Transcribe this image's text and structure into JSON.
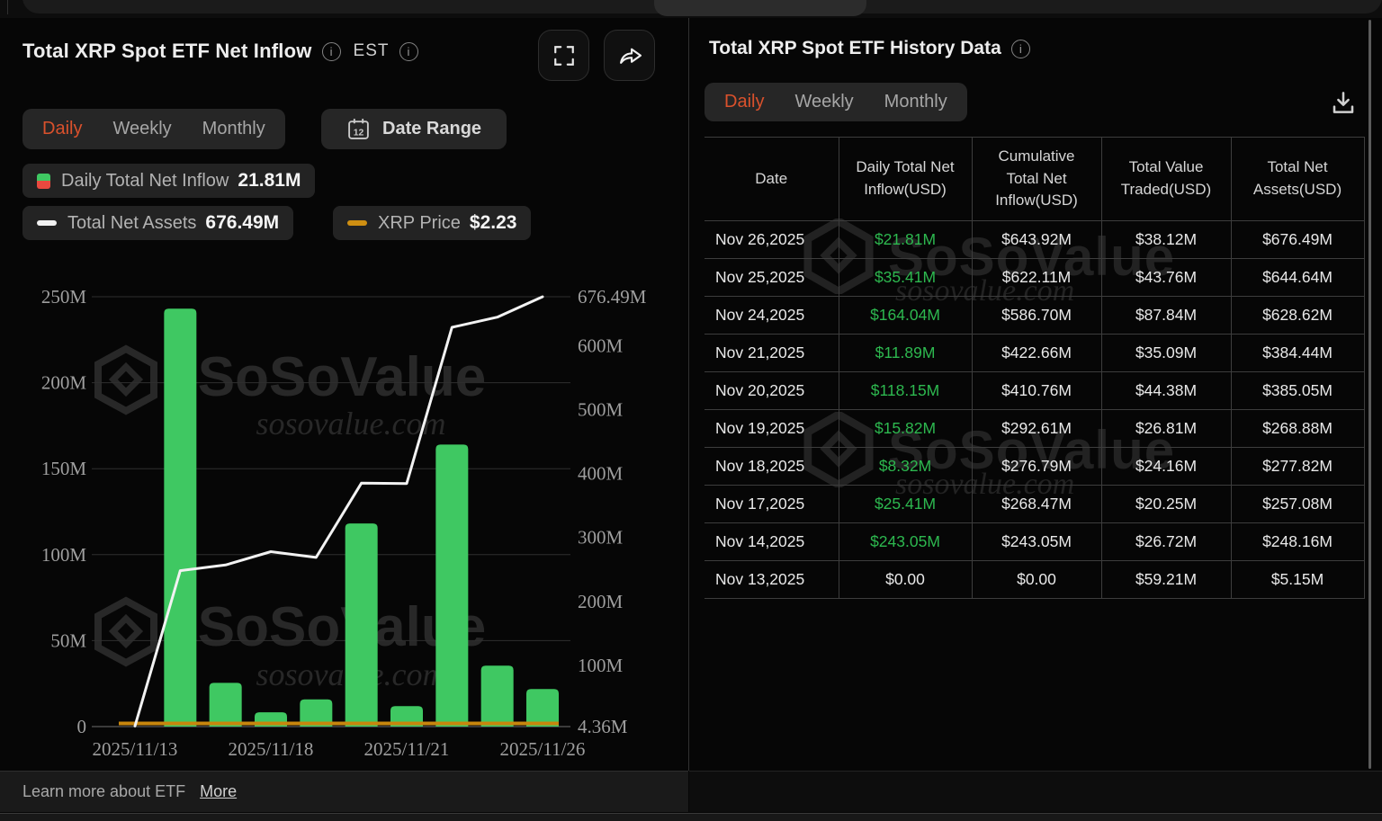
{
  "left_panel": {
    "title": "Total XRP Spot ETF Net Inflow",
    "timezone_label": "EST",
    "range_tabs": [
      "Daily",
      "Weekly",
      "Monthly"
    ],
    "active_tab": "Daily",
    "date_range_label": "Date Range",
    "calendar_day": "12",
    "legend": [
      {
        "label": "Daily Total Net Inflow",
        "value": "21.81M"
      },
      {
        "label": "Total Net Assets",
        "value": "676.49M"
      },
      {
        "label": "XRP Price",
        "value": "$2.23"
      }
    ]
  },
  "chart_data": {
    "type": "bar+line",
    "title": "Total XRP Spot ETF Net Inflow",
    "x": [
      "2025/11/13",
      "2025/11/14",
      "2025/11/17",
      "2025/11/18",
      "2025/11/19",
      "2025/11/20",
      "2025/11/21",
      "2025/11/24",
      "2025/11/25",
      "2025/11/26"
    ],
    "x_label_indices": [
      0,
      3,
      6,
      9
    ],
    "x_labels_shown": [
      "2025/11/13",
      "2025/11/18",
      "2025/11/21",
      "2025/11/26"
    ],
    "series": [
      {
        "name": "Daily Total Net Inflow",
        "type": "bar",
        "axis": "left",
        "unit": "USD millions",
        "color": "#3fc862",
        "values": [
          0,
          243.05,
          25.41,
          8.32,
          15.82,
          118.15,
          11.89,
          164.04,
          35.41,
          21.81
        ]
      },
      {
        "name": "Total Net Assets",
        "type": "line",
        "axis": "right",
        "unit": "USD millions",
        "color": "#f2f2f2",
        "values": [
          5.15,
          248.16,
          257.08,
          277.82,
          268.88,
          385.05,
          384.44,
          628.62,
          644.64,
          676.49
        ]
      },
      {
        "name": "XRP Price",
        "type": "line",
        "axis": "hidden",
        "unit": "USD",
        "color": "#c8860d",
        "current_value": "$2.23",
        "render": "flat_bottom",
        "values": null
      }
    ],
    "left_axis": {
      "labels": [
        "0",
        "50M",
        "100M",
        "150M",
        "200M",
        "250M"
      ],
      "values": [
        0,
        50,
        100,
        150,
        200,
        250
      ],
      "range": [
        0,
        250
      ]
    },
    "right_axis": {
      "labels": [
        "4.36M",
        "100M",
        "200M",
        "300M",
        "400M",
        "500M",
        "600M",
        "676.49M"
      ],
      "values": [
        4.36,
        100,
        200,
        300,
        400,
        500,
        600,
        676.49
      ],
      "range": [
        4.36,
        676.49
      ]
    },
    "grid": true,
    "legend_position": "top-left"
  },
  "right_panel": {
    "title": "Total XRP Spot ETF History Data",
    "range_tabs": [
      "Daily",
      "Weekly",
      "Monthly"
    ],
    "active_tab": "Daily",
    "table": {
      "columns": [
        "Date",
        "Daily Total Net Inflow(USD)",
        "Cumulative Total Net Inflow(USD)",
        "Total Value Traded(USD)",
        "Total Net Assets(USD)"
      ],
      "rows": [
        {
          "date": "Nov 26,2025",
          "daily_inflow": "$21.81M",
          "cumulative_inflow": "$643.92M",
          "value_traded": "$38.12M",
          "net_assets": "$676.49M",
          "daily_positive": true
        },
        {
          "date": "Nov 25,2025",
          "daily_inflow": "$35.41M",
          "cumulative_inflow": "$622.11M",
          "value_traded": "$43.76M",
          "net_assets": "$644.64M",
          "daily_positive": true
        },
        {
          "date": "Nov 24,2025",
          "daily_inflow": "$164.04M",
          "cumulative_inflow": "$586.70M",
          "value_traded": "$87.84M",
          "net_assets": "$628.62M",
          "daily_positive": true
        },
        {
          "date": "Nov 21,2025",
          "daily_inflow": "$11.89M",
          "cumulative_inflow": "$422.66M",
          "value_traded": "$35.09M",
          "net_assets": "$384.44M",
          "daily_positive": true
        },
        {
          "date": "Nov 20,2025",
          "daily_inflow": "$118.15M",
          "cumulative_inflow": "$410.76M",
          "value_traded": "$44.38M",
          "net_assets": "$385.05M",
          "daily_positive": true
        },
        {
          "date": "Nov 19,2025",
          "daily_inflow": "$15.82M",
          "cumulative_inflow": "$292.61M",
          "value_traded": "$26.81M",
          "net_assets": "$268.88M",
          "daily_positive": true
        },
        {
          "date": "Nov 18,2025",
          "daily_inflow": "$8.32M",
          "cumulative_inflow": "$276.79M",
          "value_traded": "$24.16M",
          "net_assets": "$277.82M",
          "daily_positive": true
        },
        {
          "date": "Nov 17,2025",
          "daily_inflow": "$25.41M",
          "cumulative_inflow": "$268.47M",
          "value_traded": "$20.25M",
          "net_assets": "$257.08M",
          "daily_positive": true
        },
        {
          "date": "Nov 14,2025",
          "daily_inflow": "$243.05M",
          "cumulative_inflow": "$243.05M",
          "value_traded": "$26.72M",
          "net_assets": "$248.16M",
          "daily_positive": true
        },
        {
          "date": "Nov 13,2025",
          "daily_inflow": "$0.00",
          "cumulative_inflow": "$0.00",
          "value_traded": "$59.21M",
          "net_assets": "$5.15M",
          "daily_positive": false
        }
      ]
    }
  },
  "watermark": {
    "brand": "SoSoValue",
    "domain": "sosovalue.com"
  },
  "footer": {
    "text": "Learn more about ETF",
    "link_label": "More"
  },
  "colors": {
    "accent_orange": "#d9512c",
    "positive_green": "#2db84f",
    "bar_green": "#3fc862",
    "net_assets_line": "#f2f2f2",
    "xrp_price_line": "#c8860d"
  }
}
